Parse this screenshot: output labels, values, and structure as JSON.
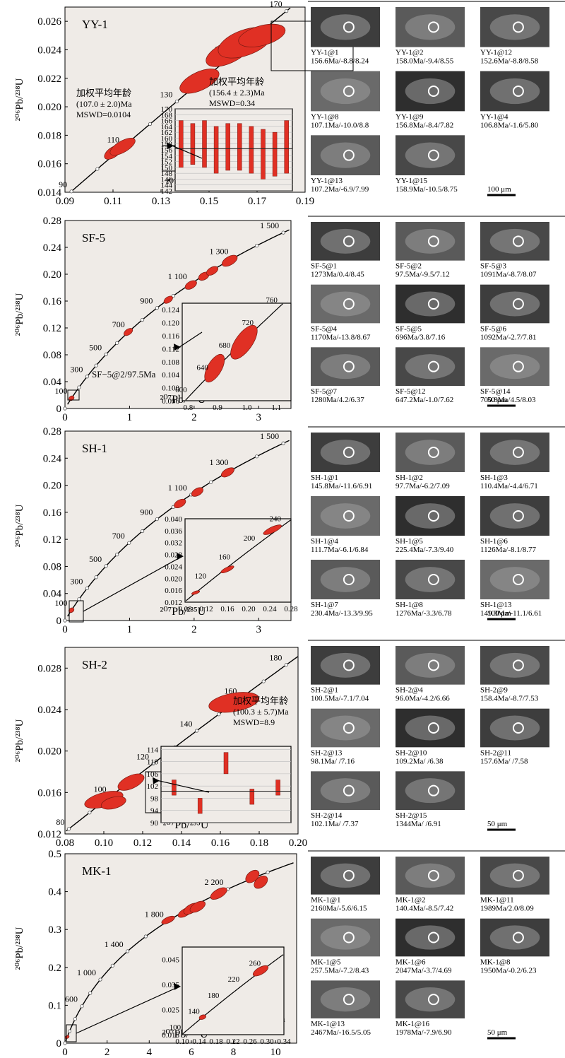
{
  "colors": {
    "ellipse": "#e03024",
    "plot_bg": "#efebe7",
    "axis": "#000000",
    "grain": "#555555"
  },
  "panels": [
    {
      "sample": "YY-1",
      "ylabel": "²⁰⁶Pb/²³⁸U",
      "xlabel": "²⁰⁷Pb/²³⁵U",
      "xlim": [
        0.09,
        0.19
      ],
      "ylim": [
        0.014,
        0.027
      ],
      "xticks": [
        "0.09",
        "0.11",
        "0.13",
        "0.15",
        "0.17",
        "0.19"
      ],
      "yticks": [
        "0.014",
        "0.016",
        "0.018",
        "0.020",
        "0.022",
        "0.024",
        "0.026"
      ],
      "concordia_labels": [
        "90",
        "110",
        "130",
        "150",
        "170"
      ],
      "annotations": [
        {
          "line1": "加权平均年龄",
          "line2": "(107.0 ± 2.0)Ma",
          "line3": "MSWD=0.0104"
        },
        {
          "line1": "加权平均年龄",
          "line2": "(156.4 ± 2.3)Ma",
          "line3": "MSWD=0.34"
        }
      ],
      "inset_kind": "bars",
      "inset_yticks": [
        "170",
        "168",
        "166",
        "164",
        "162",
        "160",
        "158",
        "156",
        "154",
        "152",
        "150",
        "148",
        "146",
        "144",
        "142"
      ],
      "inset_ylim": [
        142,
        170
      ],
      "inset_bars": [
        [
          150,
          166
        ],
        [
          151,
          165
        ],
        [
          150,
          166
        ],
        [
          148,
          164
        ],
        [
          149,
          165
        ],
        [
          149,
          165
        ],
        [
          148,
          164
        ],
        [
          146,
          163
        ],
        [
          147,
          162
        ],
        [
          148,
          166
        ]
      ],
      "inset_mean": 156.4,
      "grains": [
        {
          "label": "YY-1@1",
          "info": "156.6Ma/-8.8/8.24"
        },
        {
          "label": "YY-1@2",
          "info": "158.0Ma/-9.4/8.55"
        },
        {
          "label": "YY-1@12",
          "info": "152.6Ma/-8.8/8.58"
        },
        {
          "label": "YY-1@8",
          "info": "107.1Ma/-10.0/8.8"
        },
        {
          "label": "YY-1@9",
          "info": "156.8Ma/-8.4/7.82"
        },
        {
          "label": "YY-1@4",
          "info": "106.8Ma/-1.6/5.80"
        },
        {
          "label": "YY-1@13",
          "info": "107.2Ma/-6.9/7.99"
        },
        {
          "label": "YY-1@15",
          "info": "158.9Ma/-10.5/8.75"
        }
      ],
      "scale_bar": "100 μm"
    },
    {
      "sample": "SF-5",
      "ylabel": "²⁰⁶Pb/²³⁸U",
      "xlabel": "²⁰⁷Pb/²³⁵U",
      "xlim": [
        0,
        3.5
      ],
      "ylim": [
        0,
        0.28
      ],
      "xticks": [
        "0",
        "1",
        "2",
        "3"
      ],
      "yticks": [
        "0",
        "0.04",
        "0.08",
        "0.12",
        "0.16",
        "0.20",
        "0.24",
        "0.28"
      ],
      "concordia_labels": [
        "100",
        "300",
        "500",
        "700",
        "900",
        "1 100",
        "1 300",
        "1 500"
      ],
      "annotations": [
        {
          "line1": "SF−5@2/97.5Ma",
          "line2": "",
          "line3": ""
        }
      ],
      "inset_kind": "concordia",
      "inset_xticks": [
        "0.8",
        "0.9",
        "1.0",
        "1.1"
      ],
      "inset_yticks": [
        "0.124",
        "0.120",
        "0.116",
        "0.112",
        "0.108",
        "0.104",
        "0.100",
        "0.096"
      ],
      "inset_xlim": [
        0.78,
        1.15
      ],
      "inset_ylim": [
        0.096,
        0.126
      ],
      "inset_labels": [
        "600",
        "640",
        "680",
        "720",
        "760"
      ],
      "grains": [
        {
          "label": "SF-5@1",
          "info": "1273Ma/0.4/8.45"
        },
        {
          "label": "SF-5@2",
          "info": "97.5Ma/-9.5/7.12"
        },
        {
          "label": "SF-5@3",
          "info": "1091Ma/-8.7/8.07"
        },
        {
          "label": "SF-5@4",
          "info": "1170Ma/-13.8/8.67"
        },
        {
          "label": "SF-5@5",
          "info": "696Ma/3.8/7.16"
        },
        {
          "label": "SF-5@6",
          "info": "1092Ma/-2.7/7.81"
        },
        {
          "label": "SF-5@7",
          "info": "1280Ma/4.2/6.37"
        },
        {
          "label": "SF-5@12",
          "info": "647.2Ma/-1.0/7.62"
        },
        {
          "label": "SF-5@14",
          "info": "700.8Ma/4.5/8.03"
        }
      ],
      "scale_bar": "50 μm"
    },
    {
      "sample": "SH-1",
      "ylabel": "²⁰⁶Pb/²³⁸U",
      "xlabel": "²⁰⁷Pb/²³⁵U",
      "xlim": [
        0,
        3.5
      ],
      "ylim": [
        0,
        0.28
      ],
      "xticks": [
        "0",
        "1",
        "2",
        "3"
      ],
      "yticks": [
        "0",
        "0.04",
        "0.08",
        "0.12",
        "0.16",
        "0.20",
        "0.24",
        "0.28"
      ],
      "concordia_labels": [
        "100",
        "300",
        "500",
        "700",
        "900",
        "1 100",
        "1 300",
        "1 500"
      ],
      "annotations": [
        {
          "line1": "SH−1@2/97.7Ma",
          "line2": "",
          "line3": ""
        }
      ],
      "inset_kind": "concordia",
      "inset_xticks": [
        "0.08",
        "0.12",
        "0.16",
        "0.20",
        "0.24",
        "0.28"
      ],
      "inset_yticks": [
        "0.040",
        "0.036",
        "0.032",
        "0.028",
        "0.024",
        "0.020",
        "0.016",
        "0.012"
      ],
      "inset_xlim": [
        0.08,
        0.28
      ],
      "inset_ylim": [
        0.012,
        0.04
      ],
      "inset_labels": [
        "120",
        "160",
        "200",
        "240"
      ],
      "grains": [
        {
          "label": "SH-1@1",
          "info": "145.8Ma/-11.6/6.91"
        },
        {
          "label": "SH-1@2",
          "info": "97.7Ma/-6.2/7.09"
        },
        {
          "label": "SH-1@3",
          "info": "110.4Ma/-4.4/6.71"
        },
        {
          "label": "SH-1@4",
          "info": "111.7Ma/-6.1/6.84"
        },
        {
          "label": "SH-1@5",
          "info": "225.4Ma/-7.3/9.40"
        },
        {
          "label": "SH-1@6",
          "info": "1126Ma/-8.1/8.77"
        },
        {
          "label": "SH-1@7",
          "info": "230.4Ma/-13.3/9.95"
        },
        {
          "label": "SH-1@8",
          "info": "1276Ma/-3.3/6.78"
        },
        {
          "label": "SH-1@13",
          "info": "149.3Ma/-11.1/6.61"
        }
      ],
      "scale_bar": "100 μm"
    },
    {
      "sample": "SH-2",
      "ylabel": "²⁰⁶Pb/²³⁸U",
      "xlabel": "²⁰⁷Pb/²³⁵U",
      "xlim": [
        0.08,
        0.2
      ],
      "ylim": [
        0.012,
        0.03
      ],
      "xticks": [
        "0.08",
        "0.10",
        "0.12",
        "0.14",
        "0.16",
        "0.18",
        "0.20"
      ],
      "yticks": [
        "0.012",
        "0.016",
        "0.020",
        "0.024",
        "0.028"
      ],
      "concordia_labels": [
        "80",
        "100",
        "120",
        "140",
        "160",
        "180"
      ],
      "annotations": [
        {
          "line1": "加权平均年龄",
          "line2": "(100.3 ± 5.7)Ma",
          "line3": "MSWD=8.9"
        }
      ],
      "inset_kind": "bars",
      "inset_yticks": [
        "114",
        "110",
        "106",
        "102",
        "98",
        "94",
        "90"
      ],
      "inset_ylim": [
        90,
        115
      ],
      "inset_bars": [
        [
          99,
          104
        ],
        [
          93,
          98
        ],
        [
          106,
          113
        ],
        [
          96,
          101
        ],
        [
          99,
          104
        ]
      ],
      "inset_mean": 100.3,
      "grains": [
        {
          "label": "SH-2@1",
          "info": "100.5Ma/-7.1/7.04"
        },
        {
          "label": "SH-2@4",
          "info": "96.0Ma/-4.2/6.66"
        },
        {
          "label": "SH-2@9",
          "info": "158.4Ma/-8.7/7.53"
        },
        {
          "label": "SH-2@13",
          "info": "98.1Ma/     /7.16"
        },
        {
          "label": "SH-2@10",
          "info": "109.2Ma/     /6.38"
        },
        {
          "label": "SH-2@11",
          "info": "157.6Ma/     /7.58"
        },
        {
          "label": "SH-2@14",
          "info": "102.1Ma/     /7.37"
        },
        {
          "label": "SH-2@15",
          "info": "1344Ma/     /6.91"
        }
      ],
      "scale_bar": "50 μm"
    },
    {
      "sample": "MK-1",
      "ylabel": "²⁰⁶Pb/²³⁸U",
      "xlabel": "²⁰⁷Pb/²³⁵U",
      "xlim": [
        0,
        11
      ],
      "ylim": [
        0,
        0.5
      ],
      "xticks": [
        "0",
        "2",
        "4",
        "6",
        "8",
        "10"
      ],
      "yticks": [
        "0",
        "0.1",
        "0.2",
        "0.3",
        "0.4",
        "0.5"
      ],
      "concordia_labels": [
        "600",
        "1 000",
        "1 400",
        "1 800",
        "2 200"
      ],
      "annotations": [
        {
          "line1": "MK−1@2/104Ma",
          "line2": "",
          "line3": ""
        }
      ],
      "inset_kind": "concordia",
      "inset_xticks": [
        "0.10",
        "0.14",
        "0.18",
        "0.22",
        "0.26",
        "0.30",
        "0.34"
      ],
      "inset_yticks": [
        "0.045",
        "0.035",
        "0.025",
        "0.015"
      ],
      "inset_xlim": [
        0.1,
        0.34
      ],
      "inset_ylim": [
        0.015,
        0.05
      ],
      "inset_labels": [
        "100",
        "140",
        "180",
        "220",
        "260",
        "300"
      ],
      "grains": [
        {
          "label": "MK-1@1",
          "info": "2160Ma/-5.6/6.15"
        },
        {
          "label": "MK-1@2",
          "info": "140.4Ma/-8.5/7.42"
        },
        {
          "label": "MK-1@11",
          "info": "1989Ma/2.0/8.09"
        },
        {
          "label": "MK-1@5",
          "info": "257.5Ma/-7.2/8.43"
        },
        {
          "label": "MK-1@6",
          "info": "2047Ma/-3.7/4.69"
        },
        {
          "label": "MK-1@8",
          "info": "1950Ma/-0.2/6.23"
        },
        {
          "label": "MK-1@13",
          "info": "2467Ma/-16.5/5.05"
        },
        {
          "label": "MK-1@16",
          "info": "1978Ma/-7.9/6.90"
        }
      ],
      "scale_bar": "50 μm"
    }
  ],
  "chart_data": [
    {
      "type": "scatter",
      "title": "YY-1",
      "xlabel": "²⁰⁷Pb/²³⁵U",
      "ylabel": "²⁰⁶Pb/²³⁸U",
      "xlim": [
        0.09,
        0.19
      ],
      "ylim": [
        0.014,
        0.027
      ],
      "concordia_ages_ma": [
        90,
        110,
        130,
        150,
        170
      ],
      "ellipses": [
        {
          "x": 0.11,
          "y": 0.0168,
          "age_ma": 107
        },
        {
          "x": 0.114,
          "y": 0.0172,
          "age_ma": 110
        },
        {
          "x": 0.146,
          "y": 0.0218,
          "age_ma": 140
        },
        {
          "x": 0.158,
          "y": 0.0238,
          "age_ma": 152
        },
        {
          "x": 0.165,
          "y": 0.0245,
          "age_ma": 156
        },
        {
          "x": 0.172,
          "y": 0.025,
          "age_ma": 159
        }
      ],
      "weighted_mean": [
        {
          "age_ma": 107.0,
          "error_ma": 2.0,
          "mswd": 0.0104
        },
        {
          "age_ma": 156.4,
          "error_ma": 2.3,
          "mswd": 0.34
        }
      ],
      "grid": false
    },
    {
      "type": "scatter",
      "title": "SF-5",
      "xlabel": "²⁰⁷Pb/²³⁵U",
      "ylabel": "²⁰⁶Pb/²³⁸U",
      "xlim": [
        0,
        3.5
      ],
      "ylim": [
        0,
        0.28
      ],
      "concordia_ages_ma": [
        100,
        300,
        500,
        700,
        900,
        1100,
        1300,
        1500
      ],
      "ellipses": [
        {
          "x": 0.1,
          "y": 0.0153,
          "age_ma": 97.5
        },
        {
          "x": 0.98,
          "y": 0.114,
          "age_ma": 696
        },
        {
          "x": 1.6,
          "y": 0.162,
          "age_ma": 970
        },
        {
          "x": 1.95,
          "y": 0.184,
          "age_ma": 1091
        },
        {
          "x": 2.15,
          "y": 0.197,
          "age_ma": 1170
        },
        {
          "x": 2.28,
          "y": 0.205,
          "age_ma": 1205
        },
        {
          "x": 2.55,
          "y": 0.22,
          "age_ma": 1280
        }
      ],
      "inset": {
        "xlim": [
          0.78,
          1.15
        ],
        "ylim": [
          0.096,
          0.126
        ],
        "ellipses": [
          {
            "x": 0.89,
            "y": 0.106,
            "age_ma": 647
          },
          {
            "x": 0.99,
            "y": 0.114,
            "age_ma": 700
          }
        ]
      },
      "grid": false
    },
    {
      "type": "scatter",
      "title": "SH-1",
      "xlabel": "²⁰⁷Pb/²³⁵U",
      "ylabel": "²⁰⁶Pb/²³⁸U",
      "xlim": [
        0,
        3.5
      ],
      "ylim": [
        0,
        0.28
      ],
      "concordia_ages_ma": [
        100,
        300,
        500,
        700,
        900,
        1100,
        1300,
        1500
      ],
      "ellipses": [
        {
          "x": 0.1,
          "y": 0.0153,
          "age_ma": 97.7
        },
        {
          "x": 1.78,
          "y": 0.173,
          "age_ma": 1030
        },
        {
          "x": 2.05,
          "y": 0.19,
          "age_ma": 1126
        },
        {
          "x": 2.52,
          "y": 0.219,
          "age_ma": 1276
        }
      ],
      "inset": {
        "xlim": [
          0.08,
          0.28
        ],
        "ylim": [
          0.012,
          0.04
        ],
        "ellipses": [
          {
            "x": 0.1,
            "y": 0.0152,
            "age_ma": 97.7
          },
          {
            "x": 0.16,
            "y": 0.023,
            "age_ma": 146
          },
          {
            "x": 0.245,
            "y": 0.0363,
            "age_ma": 228
          }
        ]
      },
      "grid": false
    },
    {
      "type": "scatter",
      "title": "SH-2",
      "xlabel": "²⁰⁷Pb/²³⁵U",
      "ylabel": "²⁰⁶Pb/²³⁸U",
      "xlim": [
        0.08,
        0.2
      ],
      "ylim": [
        0.012,
        0.03
      ],
      "concordia_ages_ma": [
        80,
        100,
        120,
        140,
        160,
        180
      ],
      "ellipses": [
        {
          "x": 0.1,
          "y": 0.0153,
          "age_ma": 98
        },
        {
          "x": 0.105,
          "y": 0.015,
          "age_ma": 96
        },
        {
          "x": 0.114,
          "y": 0.017,
          "age_ma": 109
        },
        {
          "x": 0.167,
          "y": 0.0247,
          "age_ma": 158
        }
      ],
      "weighted_mean": [
        {
          "age_ma": 100.3,
          "error_ma": 5.7,
          "mswd": 8.9
        }
      ],
      "grid": false
    },
    {
      "type": "scatter",
      "title": "MK-1",
      "xlabel": "²⁰⁷Pb/²³⁵U",
      "ylabel": "²⁰⁶Pb/²³⁸U",
      "xlim": [
        0,
        11
      ],
      "ylim": [
        0,
        0.5
      ],
      "concordia_ages_ma": [
        600,
        1000,
        1400,
        1800,
        2200
      ],
      "ellipses": [
        {
          "x": 0.105,
          "y": 0.0163,
          "age_ma": 104
        },
        {
          "x": 4.9,
          "y": 0.325,
          "age_ma": 1815
        },
        {
          "x": 5.7,
          "y": 0.345,
          "age_ma": 1910
        },
        {
          "x": 6.0,
          "y": 0.355,
          "age_ma": 1950
        },
        {
          "x": 6.3,
          "y": 0.36,
          "age_ma": 1980
        },
        {
          "x": 7.3,
          "y": 0.395,
          "age_ma": 2145
        },
        {
          "x": 8.9,
          "y": 0.44,
          "age_ma": 2350
        },
        {
          "x": 9.3,
          "y": 0.425,
          "age_ma": 2280
        }
      ],
      "inset": {
        "xlim": [
          0.1,
          0.34
        ],
        "ylim": [
          0.015,
          0.05
        ],
        "ellipses": [
          {
            "x": 0.148,
            "y": 0.022,
            "age_ma": 140
          },
          {
            "x": 0.285,
            "y": 0.0405,
            "age_ma": 257
          }
        ]
      },
      "grid": false
    }
  ]
}
